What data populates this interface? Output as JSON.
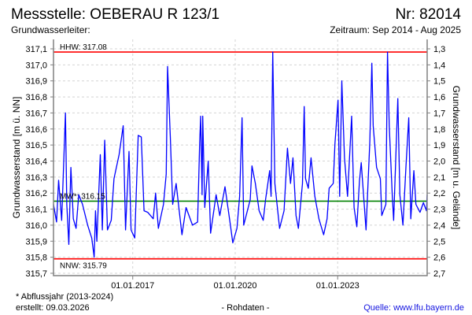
{
  "header": {
    "title": "Messstelle: OEBERAU R 123/1",
    "number": "Nr: 82014",
    "aquifer": "Grundwasserleiter:",
    "period": "Zeitraum: Sep 2014 - Aug 2025"
  },
  "footer": {
    "note": "* Abflussjahr (2013-2024)",
    "created": "erstellt:  09.03.2026",
    "raw": "- Rohdaten -",
    "source": "Quelle: www.lfu.bayern.de"
  },
  "colors": {
    "series": "#0000ff",
    "extreme": "#ff0000",
    "mean": "#008000",
    "grid": "#d0d0d0",
    "frame": "#808080"
  },
  "chart_data": {
    "type": "line",
    "title": "Messstelle: OEBERAU R 123/1",
    "ylabel": "Grundwasserstand [m ü. NN]",
    "ylabel_right": "Grundwasserstand [m u. Gelände]",
    "xlabel": "",
    "ylim": [
      315.7,
      317.1
    ],
    "ylim_right": [
      2.7,
      1.3
    ],
    "xlim": [
      2014.68,
      2025.62
    ],
    "grid": true,
    "yticks": [
      "315,7",
      "315,8",
      "315,9",
      "316,0",
      "316,1",
      "316,2",
      "316,3",
      "316,4",
      "316,5",
      "316,6",
      "316,7",
      "316,8",
      "316,9",
      "317,0",
      "317,1"
    ],
    "yticks_right": [
      "2,7",
      "2,6",
      "2,5",
      "2,4",
      "2,3",
      "2,2",
      "2,1",
      "2,0",
      "1,9",
      "1,8",
      "1,7",
      "1,6",
      "1,5",
      "1,4",
      "1,3"
    ],
    "xticks": [
      {
        "label": "01.01.2017",
        "x": 2017.0
      },
      {
        "label": "01.01.2020",
        "x": 2020.0
      },
      {
        "label": "01.01.2023",
        "x": 2023.0
      }
    ],
    "reference_lines": [
      {
        "name": "HHW",
        "label": "HHW: 317.08",
        "value": 317.08,
        "color": "#ff0000"
      },
      {
        "name": "MW",
        "label": "MW*: 316.15",
        "value": 316.15,
        "color": "#008000"
      },
      {
        "name": "NNW",
        "label": "NNW: 315.79",
        "value": 315.79,
        "color": "#ff0000"
      }
    ],
    "series": [
      {
        "name": "Grundwasserstand",
        "points": [
          [
            2014.68,
            316.13
          ],
          [
            2014.77,
            316.02
          ],
          [
            2014.83,
            316.28
          ],
          [
            2014.92,
            316.03
          ],
          [
            2015.03,
            316.7
          ],
          [
            2015.07,
            316.13
          ],
          [
            2015.13,
            315.88
          ],
          [
            2015.19,
            316.36
          ],
          [
            2015.26,
            316.04
          ],
          [
            2015.34,
            315.98
          ],
          [
            2015.42,
            316.19
          ],
          [
            2015.53,
            316.13
          ],
          [
            2015.68,
            316.0
          ],
          [
            2015.8,
            315.92
          ],
          [
            2015.87,
            315.8
          ],
          [
            2015.91,
            316.09
          ],
          [
            2015.95,
            315.9
          ],
          [
            2016.05,
            316.44
          ],
          [
            2016.11,
            315.97
          ],
          [
            2016.18,
            316.53
          ],
          [
            2016.26,
            315.97
          ],
          [
            2016.37,
            316.03
          ],
          [
            2016.45,
            316.29
          ],
          [
            2016.6,
            316.44
          ],
          [
            2016.72,
            316.62
          ],
          [
            2016.79,
            315.97
          ],
          [
            2016.89,
            316.46
          ],
          [
            2016.95,
            315.97
          ],
          [
            2017.06,
            315.92
          ],
          [
            2017.16,
            316.56
          ],
          [
            2017.25,
            316.55
          ],
          [
            2017.33,
            316.09
          ],
          [
            2017.44,
            316.08
          ],
          [
            2017.6,
            316.04
          ],
          [
            2017.67,
            316.2
          ],
          [
            2017.75,
            315.98
          ],
          [
            2017.9,
            316.13
          ],
          [
            2017.98,
            316.32
          ],
          [
            2018.02,
            316.99
          ],
          [
            2018.1,
            316.55
          ],
          [
            2018.17,
            316.13
          ],
          [
            2018.27,
            316.26
          ],
          [
            2018.36,
            316.09
          ],
          [
            2018.44,
            315.94
          ],
          [
            2018.56,
            316.11
          ],
          [
            2018.75,
            316.0
          ],
          [
            2018.9,
            316.02
          ],
          [
            2018.96,
            316.51
          ],
          [
            2018.99,
            316.68
          ],
          [
            2019.03,
            316.19
          ],
          [
            2019.05,
            316.68
          ],
          [
            2019.11,
            316.11
          ],
          [
            2019.21,
            316.4
          ],
          [
            2019.28,
            315.95
          ],
          [
            2019.44,
            316.19
          ],
          [
            2019.55,
            316.06
          ],
          [
            2019.7,
            316.24
          ],
          [
            2019.86,
            316.0
          ],
          [
            2019.93,
            315.89
          ],
          [
            2020.05,
            315.98
          ],
          [
            2020.13,
            316.18
          ],
          [
            2020.2,
            316.67
          ],
          [
            2020.25,
            316.0
          ],
          [
            2020.44,
            316.16
          ],
          [
            2020.49,
            316.37
          ],
          [
            2020.59,
            316.26
          ],
          [
            2020.7,
            316.09
          ],
          [
            2020.82,
            316.03
          ],
          [
            2020.89,
            316.16
          ],
          [
            2021.01,
            316.34
          ],
          [
            2021.05,
            316.18
          ],
          [
            2021.1,
            317.08
          ],
          [
            2021.16,
            316.26
          ],
          [
            2021.3,
            315.98
          ],
          [
            2021.43,
            316.09
          ],
          [
            2021.53,
            316.48
          ],
          [
            2021.62,
            316.26
          ],
          [
            2021.69,
            316.42
          ],
          [
            2021.78,
            316.06
          ],
          [
            2021.85,
            315.98
          ],
          [
            2021.97,
            316.26
          ],
          [
            2022.02,
            316.74
          ],
          [
            2022.06,
            316.29
          ],
          [
            2022.14,
            316.23
          ],
          [
            2022.22,
            316.42
          ],
          [
            2022.33,
            316.18
          ],
          [
            2022.45,
            316.04
          ],
          [
            2022.59,
            315.94
          ],
          [
            2022.69,
            316.04
          ],
          [
            2022.75,
            316.23
          ],
          [
            2022.87,
            316.26
          ],
          [
            2022.92,
            316.51
          ],
          [
            2023.01,
            316.78
          ],
          [
            2023.06,
            316.18
          ],
          [
            2023.12,
            316.9
          ],
          [
            2023.2,
            316.42
          ],
          [
            2023.29,
            316.18
          ],
          [
            2023.41,
            316.68
          ],
          [
            2023.48,
            316.11
          ],
          [
            2023.56,
            315.99
          ],
          [
            2023.64,
            316.28
          ],
          [
            2023.69,
            316.39
          ],
          [
            2023.83,
            315.97
          ],
          [
            2023.94,
            316.52
          ],
          [
            2024.0,
            317.01
          ],
          [
            2024.04,
            316.62
          ],
          [
            2024.14,
            316.36
          ],
          [
            2024.25,
            316.29
          ],
          [
            2024.29,
            316.06
          ],
          [
            2024.41,
            316.13
          ],
          [
            2024.46,
            317.08
          ],
          [
            2024.51,
            316.62
          ],
          [
            2024.6,
            316.18
          ],
          [
            2024.64,
            316.03
          ],
          [
            2024.76,
            316.79
          ],
          [
            2024.82,
            316.19
          ],
          [
            2024.91,
            316.0
          ],
          [
            2025.0,
            316.37
          ],
          [
            2025.08,
            316.67
          ],
          [
            2025.14,
            316.04
          ],
          [
            2025.23,
            316.34
          ],
          [
            2025.29,
            316.13
          ],
          [
            2025.41,
            316.08
          ],
          [
            2025.51,
            316.14
          ],
          [
            2025.6,
            316.09
          ],
          [
            2025.62,
            316.19
          ]
        ]
      }
    ]
  }
}
